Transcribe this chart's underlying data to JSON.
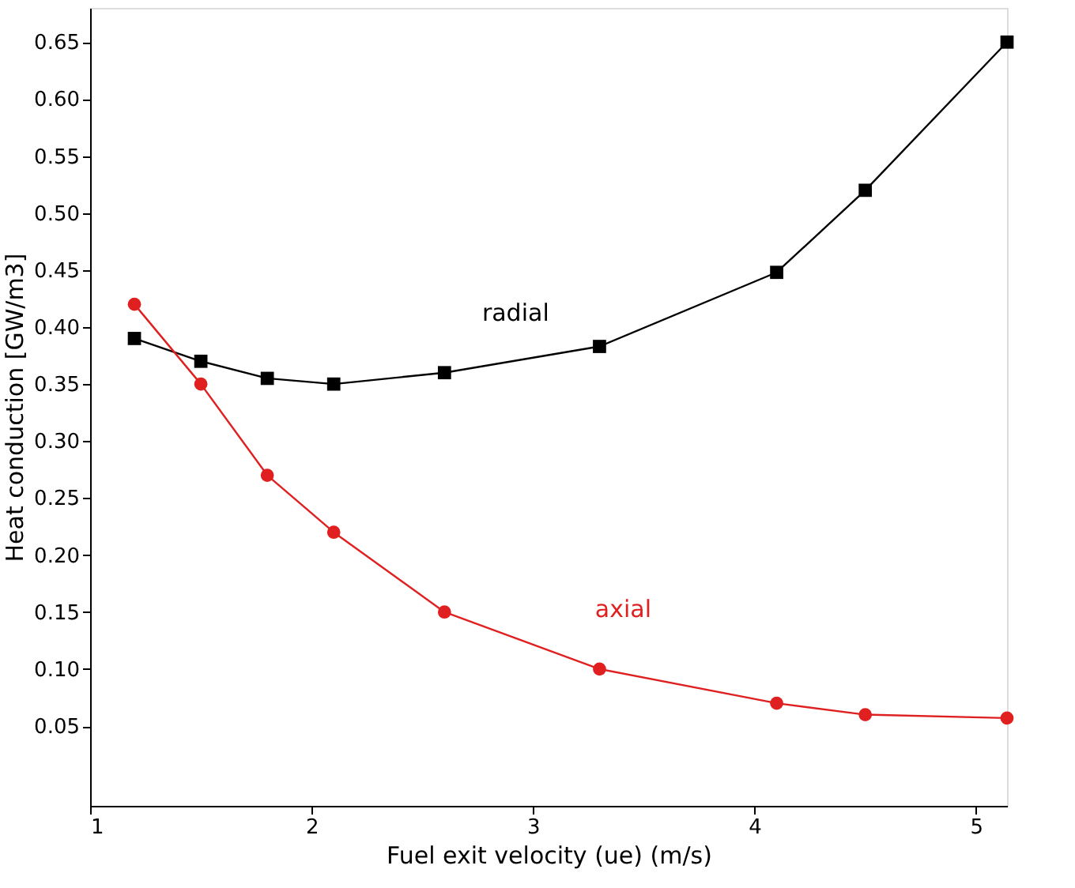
{
  "chart_data": {
    "type": "line",
    "xlabel": "Fuel exit velocity (ue) (m/s)",
    "ylabel": "Heat conduction [GW/m3]",
    "x": [
      1.2,
      1.5,
      1.8,
      2.1,
      2.6,
      3.3,
      4.1,
      4.5,
      5.14
    ],
    "series": [
      {
        "name": "radial",
        "color": "#000000",
        "marker": "square",
        "values": [
          0.39,
          0.37,
          0.355,
          0.35,
          0.36,
          0.383,
          0.448,
          0.52,
          0.65
        ]
      },
      {
        "name": "axial",
        "color": "#e02020",
        "marker": "circle",
        "values": [
          0.42,
          0.35,
          0.27,
          0.22,
          0.15,
          0.1,
          0.07,
          0.06,
          0.057
        ]
      }
    ],
    "xlim": [
      1,
      5.14
    ],
    "xticks": [
      1,
      2,
      3,
      4,
      5
    ],
    "ylim": [
      -0.02,
      0.68
    ],
    "yticks": [
      0.05,
      {
        "value": 0.1,
        "label": "0.10"
      },
      0.15,
      {
        "value": 0.2,
        "label": "0.20"
      },
      0.25,
      {
        "value": 0.3,
        "label": "0.30"
      },
      0.35,
      {
        "value": 0.4,
        "label": "0.40"
      },
      0.45,
      {
        "value": 0.5,
        "label": "0.50"
      },
      0.55,
      {
        "value": 0.6,
        "label": "0.60"
      },
      0.65
    ],
    "grid": false,
    "legend": false,
    "line_style": "solid"
  }
}
